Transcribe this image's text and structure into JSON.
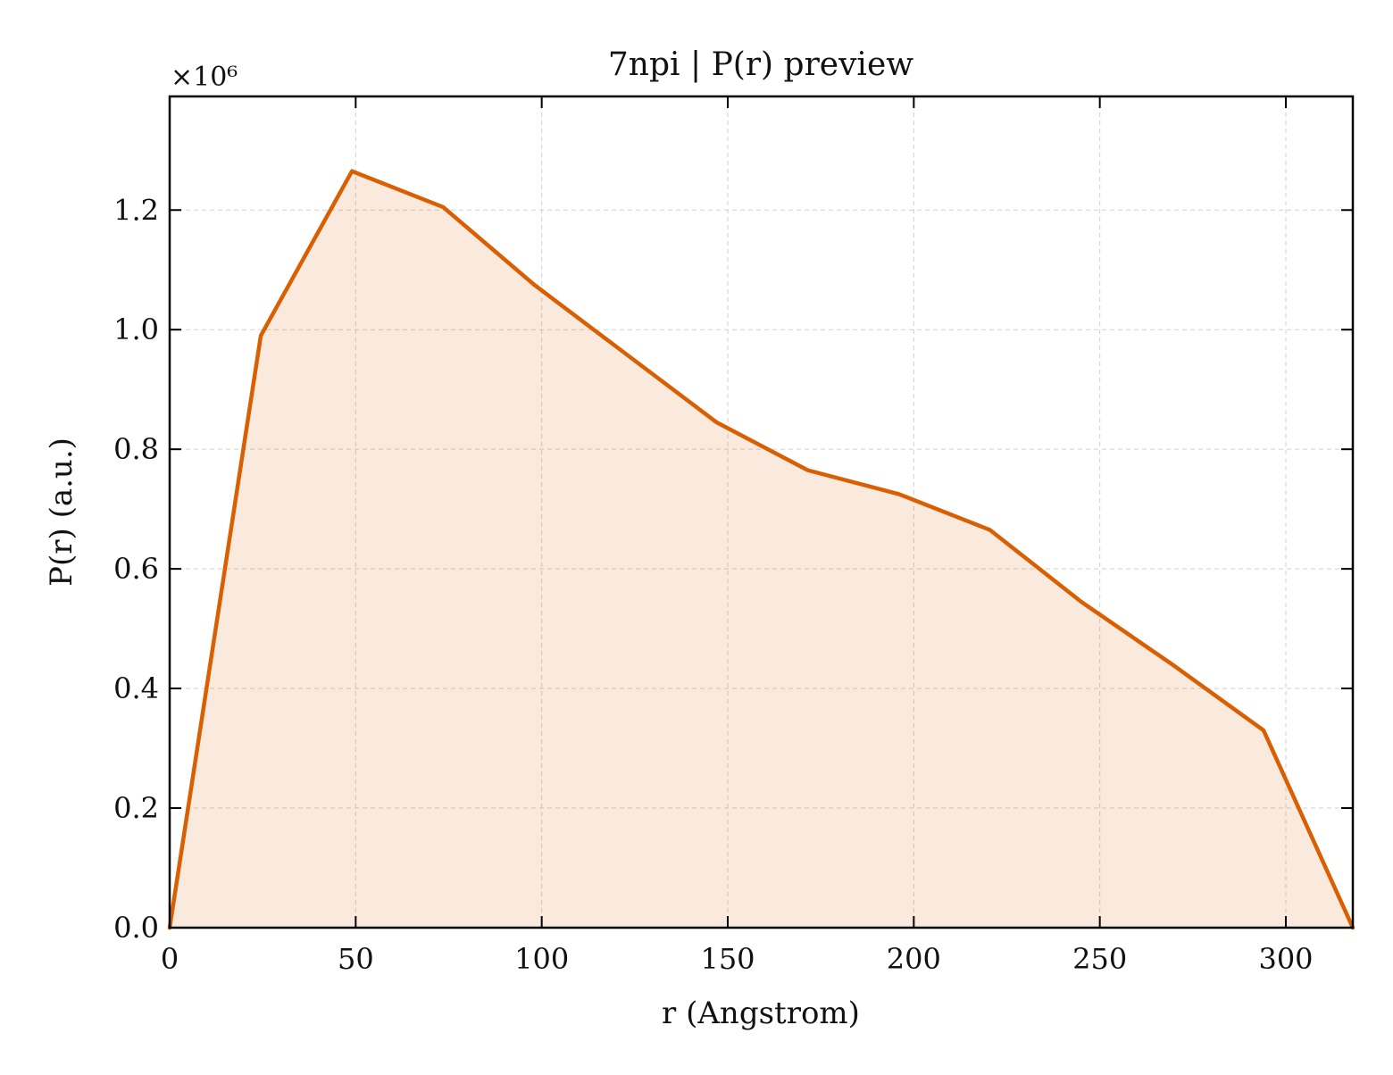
{
  "chart_data": {
    "type": "area",
    "title": "7npi | P(r) preview",
    "xlabel": "r (Angstrom)",
    "ylabel": "P(r) (a.u.)",
    "y_multiplier_label": "×10⁶",
    "y_scale": 1000000,
    "xlim": [
      0,
      318
    ],
    "ylim": [
      0,
      1.39
    ],
    "xticks": [
      0,
      50,
      100,
      150,
      200,
      250,
      300
    ],
    "xtick_labels": [
      "0",
      "50",
      "100",
      "150",
      "200",
      "250",
      "300"
    ],
    "yticks": [
      0.0,
      0.2,
      0.4,
      0.6,
      0.8,
      1.0,
      1.2
    ],
    "ytick_labels": [
      "0.0",
      "0.2",
      "0.4",
      "0.6",
      "0.8",
      "1.0",
      "1.2"
    ],
    "grid": true,
    "series": [
      {
        "color": "#d95f02",
        "fill_color": "#d95f02",
        "fill_opacity": 0.13,
        "x": [
          0,
          24.5,
          49,
          73.5,
          98,
          122.5,
          147,
          171.5,
          196,
          220.5,
          245,
          269.5,
          294,
          318
        ],
        "y": [
          0.0,
          0.99,
          1.265,
          1.205,
          1.075,
          0.96,
          0.845,
          0.765,
          0.725,
          0.665,
          0.545,
          0.44,
          0.33,
          0.0
        ]
      }
    ]
  }
}
